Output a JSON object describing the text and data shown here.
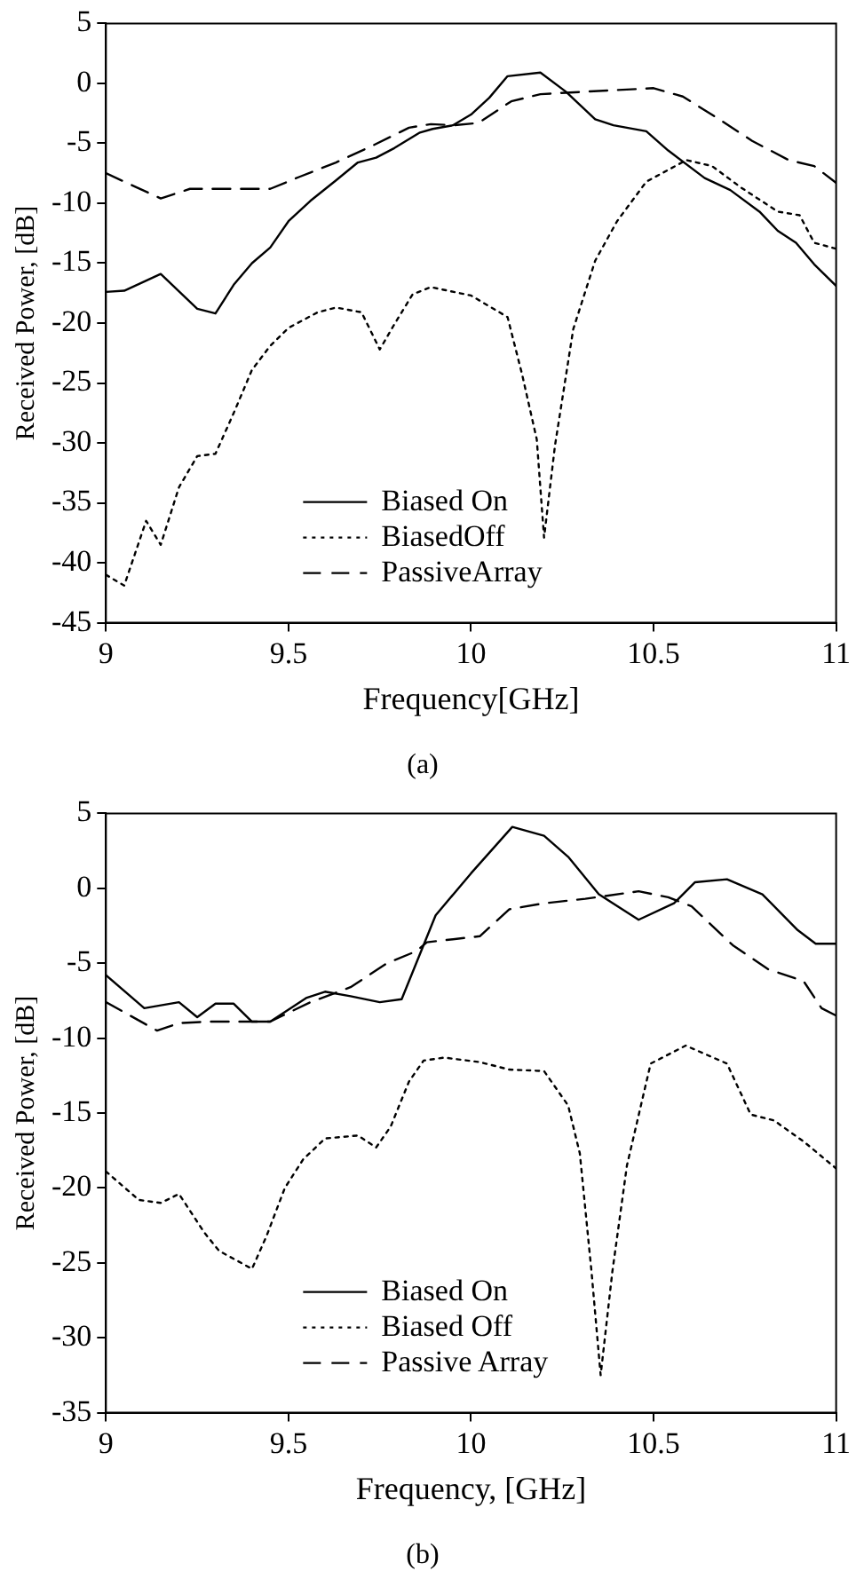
{
  "chart_data": [
    {
      "type": "line",
      "title": "(a)",
      "xlabel": "Frequency[GHz]",
      "ylabel": "Received Power, [dB]",
      "xlim": [
        9,
        11
      ],
      "xticks": [
        9,
        9.5,
        10,
        10.5,
        11
      ],
      "ylim": [
        -45,
        5
      ],
      "yticks": [
        5,
        0,
        -5,
        -10,
        -15,
        -20,
        -25,
        -30,
        -35,
        -40,
        -45
      ],
      "grid": false,
      "legend": "bottom",
      "marker": "none",
      "series": [
        {
          "name": "Biased On",
          "color": "#000000",
          "line_style": "solid",
          "x": [
            9.0,
            9.05,
            9.15,
            9.25,
            9.3,
            9.35,
            9.4,
            9.45,
            9.5,
            9.56,
            9.63,
            9.69,
            9.74,
            9.79,
            9.86,
            9.895,
            9.95,
            10.0,
            10.05,
            10.1,
            10.19,
            10.26,
            10.34,
            10.39,
            10.48,
            10.54,
            10.64,
            10.71,
            10.79,
            10.84,
            10.89,
            10.94,
            11.0
          ],
          "values": [
            -17.4,
            -17.3,
            -15.9,
            -18.8,
            -19.2,
            -16.8,
            -15,
            -13.7,
            -11.5,
            -9.8,
            -8.1,
            -6.6,
            -6.2,
            -5.4,
            -4.1,
            -3.8,
            -3.5,
            -2.6,
            -1.2,
            0.6,
            0.9,
            -0.7,
            -3.0,
            -3.5,
            -4.0,
            -5.6,
            -7.9,
            -8.9,
            -10.7,
            -12.3,
            -13.3,
            -15.1,
            -16.9
          ]
        },
        {
          "name": "BiasedOff",
          "color": "#000000",
          "line_style": "dotted",
          "x": [
            9.0,
            9.05,
            9.11,
            9.15,
            9.2,
            9.25,
            9.3,
            9.35,
            9.4,
            9.45,
            9.5,
            9.58,
            9.63,
            9.7,
            9.75,
            9.79,
            9.84,
            9.89,
            10.0,
            10.1,
            10.14,
            10.18,
            10.2,
            10.23,
            10.28,
            10.34,
            10.4,
            10.48,
            10.59,
            10.66,
            10.74,
            10.84,
            10.9,
            10.94,
            11.0
          ],
          "values": [
            -41.0,
            -41.9,
            -36.5,
            -38.5,
            -33.7,
            -31.1,
            -30.9,
            -27.5,
            -23.9,
            -21.9,
            -20.4,
            -19.1,
            -18.7,
            -19.1,
            -22.2,
            -20.1,
            -17.6,
            -17.0,
            -17.7,
            -19.5,
            -24.3,
            -29.7,
            -37.9,
            -30.2,
            -20.5,
            -14.8,
            -11.5,
            -8.2,
            -6.4,
            -6.9,
            -8.7,
            -10.7,
            -11.0,
            -13.3,
            -13.8
          ]
        },
        {
          "name": "PassiveArray",
          "color": "#000000",
          "line_style": "dashed",
          "x": [
            9.0,
            9.15,
            9.23,
            9.33,
            9.45,
            9.53,
            9.63,
            9.73,
            9.83,
            9.89,
            9.95,
            10.02,
            10.11,
            10.19,
            10.31,
            10.5,
            10.58,
            10.68,
            10.77,
            10.87,
            10.94,
            11.0
          ],
          "values": [
            -7.5,
            -9.6,
            -8.8,
            -8.8,
            -8.8,
            -7.8,
            -6.6,
            -5.2,
            -3.7,
            -3.4,
            -3.5,
            -3.3,
            -1.5,
            -0.9,
            -0.7,
            -0.4,
            -1.1,
            -3.0,
            -4.8,
            -6.4,
            -6.9,
            -8.3
          ]
        }
      ]
    },
    {
      "type": "line",
      "title": "(b)",
      "xlabel": "Frequency, [GHz]",
      "ylabel": "Received Power, [dB]",
      "xlim": [
        9,
        11
      ],
      "xticks": [
        9,
        9.5,
        10,
        10.5,
        11
      ],
      "ylim": [
        -35,
        5
      ],
      "yticks": [
        5,
        0,
        -5,
        -10,
        -15,
        -20,
        -25,
        -30,
        -35
      ],
      "grid": false,
      "legend": "bottom",
      "marker": "none",
      "series": [
        {
          "name": "Biased On",
          "color": "#000000",
          "line_style": "solid",
          "x": [
            9.0,
            9.105,
            9.2,
            9.25,
            9.3,
            9.35,
            9.4,
            9.45,
            9.55,
            9.6,
            9.67,
            9.75,
            9.81,
            9.903,
            10.0,
            10.113,
            10.2,
            10.266,
            10.35,
            10.459,
            10.556,
            10.613,
            10.701,
            10.798,
            10.895,
            10.944,
            11.0
          ],
          "values": [
            -5.8,
            -8.0,
            -7.6,
            -8.6,
            -7.7,
            -7.7,
            -8.9,
            -8.9,
            -7.3,
            -6.9,
            -7.2,
            -7.6,
            -7.4,
            -1.8,
            1.0,
            4.1,
            3.5,
            2.1,
            -0.4,
            -2.1,
            -1.0,
            0.4,
            0.6,
            -0.4,
            -2.8,
            -3.7,
            -3.7
          ]
        },
        {
          "name": "Biased Off",
          "color": "#000000",
          "line_style": "dotted",
          "x": [
            9.0,
            9.09,
            9.15,
            9.2,
            9.27,
            9.31,
            9.4,
            9.44,
            9.49,
            9.54,
            9.6,
            9.69,
            9.74,
            9.78,
            9.83,
            9.87,
            9.927,
            10.024,
            10.105,
            10.2,
            10.266,
            10.298,
            10.33,
            10.355,
            10.387,
            10.427,
            10.492,
            10.588,
            10.701,
            10.766,
            10.83,
            10.911,
            11.0
          ],
          "values": [
            -18.9,
            -20.8,
            -21.0,
            -20.4,
            -23.0,
            -24.2,
            -25.4,
            -23.2,
            -20.0,
            -18.1,
            -16.7,
            -16.5,
            -17.3,
            -15.9,
            -12.9,
            -11.5,
            -11.3,
            -11.6,
            -12.1,
            -12.2,
            -14.5,
            -17.7,
            -25.6,
            -32.5,
            -25.6,
            -18.5,
            -11.7,
            -10.5,
            -11.7,
            -15.1,
            -15.5,
            -16.9,
            -18.7
          ]
        },
        {
          "name": "Passive Array",
          "color": "#000000",
          "line_style": "dashed",
          "x": [
            9.0,
            9.14,
            9.2,
            9.28,
            9.45,
            9.56,
            9.67,
            9.77,
            9.85,
            9.879,
            10.024,
            10.105,
            10.2,
            10.313,
            10.459,
            10.54,
            10.604,
            10.717,
            10.814,
            10.911,
            10.96,
            11.0
          ],
          "values": [
            -7.6,
            -9.5,
            -9.0,
            -8.9,
            -8.9,
            -7.6,
            -6.6,
            -5.0,
            -4.2,
            -3.6,
            -3.2,
            -1.4,
            -1.0,
            -0.7,
            -0.2,
            -0.6,
            -1.2,
            -3.8,
            -5.4,
            -6.2,
            -8.0,
            -8.5
          ]
        }
      ]
    }
  ]
}
